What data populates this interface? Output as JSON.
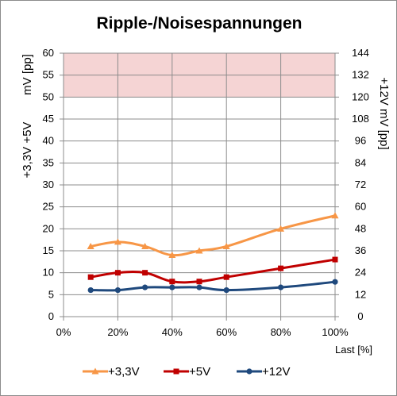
{
  "chart_data": {
    "type": "line",
    "title": "Ripple-/Noisespannungen",
    "xlabel": "Last [%]",
    "ylabel_left_main": "+3,3V +5V",
    "ylabel_left_unit": "mV [pp]",
    "ylabel_right": "+12V  mV [pp]",
    "x_ticks": [
      "0%",
      "20%",
      "40%",
      "60%",
      "80%",
      "100%"
    ],
    "xlim": [
      0,
      100
    ],
    "ylim_left": [
      0,
      60
    ],
    "y_ticks_left": [
      0,
      5,
      10,
      15,
      20,
      25,
      30,
      35,
      40,
      45,
      50,
      55,
      60
    ],
    "ylim_right": [
      0,
      144
    ],
    "y_ticks_right": [
      0,
      12,
      24,
      36,
      48,
      60,
      72,
      84,
      96,
      108,
      120,
      132,
      144
    ],
    "limit_band_left": [
      50,
      60
    ],
    "limit_band_color": "#f5d4d4",
    "grid": true,
    "legend_position": "bottom",
    "x": [
      10,
      20,
      30,
      40,
      50,
      60,
      80,
      100
    ],
    "series": [
      {
        "name": "+3,3V",
        "axis": "left",
        "color": "#f79646",
        "marker": "triangle",
        "values": [
          16,
          17,
          16,
          14,
          15,
          16,
          20,
          23
        ]
      },
      {
        "name": "+5V",
        "axis": "left",
        "color": "#c00000",
        "marker": "square",
        "values": [
          9,
          10,
          10,
          8,
          8,
          9,
          11,
          13
        ]
      },
      {
        "name": "+12V",
        "axis": "right",
        "color": "#1f497d",
        "marker": "circle",
        "values": [
          14.5,
          14.5,
          16,
          16,
          16,
          14.5,
          16,
          19
        ]
      }
    ]
  }
}
